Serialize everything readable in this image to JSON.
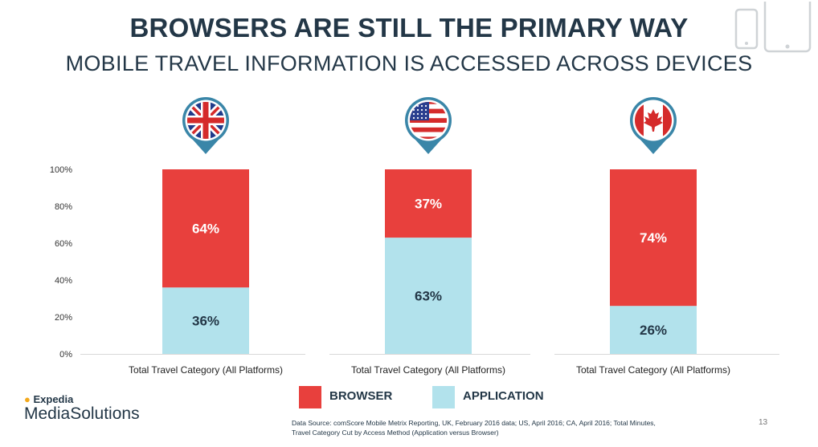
{
  "header": {
    "title": "BROWSERS ARE STILL THE PRIMARY WAY",
    "subtitle": "MOBILE TRAVEL INFORMATION IS ACCESSED ACROSS DEVICES"
  },
  "colors": {
    "browser": "#e8403d",
    "application": "#b2e2ec",
    "pin": "#3a86a8",
    "text": "#233747"
  },
  "icons": {
    "devices": "phone-tablet-icon",
    "flags": [
      "uk-flag-icon",
      "us-flag-icon",
      "canada-flag-icon"
    ]
  },
  "chart_data": {
    "type": "bar",
    "stacked": true,
    "categories": [
      "Total Travel Category (All Platforms)",
      "Total Travel Category (All Platforms)",
      "Total Travel Category (All Platforms)"
    ],
    "series": [
      {
        "name": "APPLICATION",
        "values": [
          36,
          63,
          26
        ],
        "labels": [
          "36%",
          "63%",
          "26%"
        ]
      },
      {
        "name": "BROWSER",
        "values": [
          64,
          37,
          74
        ],
        "labels": [
          "64%",
          "37%",
          "74%"
        ]
      }
    ],
    "yticks": [
      "0%",
      "20%",
      "40%",
      "60%",
      "80%",
      "100%"
    ],
    "ylim": [
      0,
      100
    ],
    "grid": false,
    "legend": "bottom"
  },
  "legend": {
    "browser": "BROWSER",
    "application": "APPLICATION"
  },
  "logo": {
    "line1": "Expedia",
    "line2": "MediaSolutions"
  },
  "footer": {
    "source": "Data Source: comScore Mobile Metrix Reporting, UK, February 2016 data; US, April 2016; CA, April 2016; Total Minutes, Travel Category Cut by Access Method (Application versus Browser)",
    "page_number": "13"
  }
}
